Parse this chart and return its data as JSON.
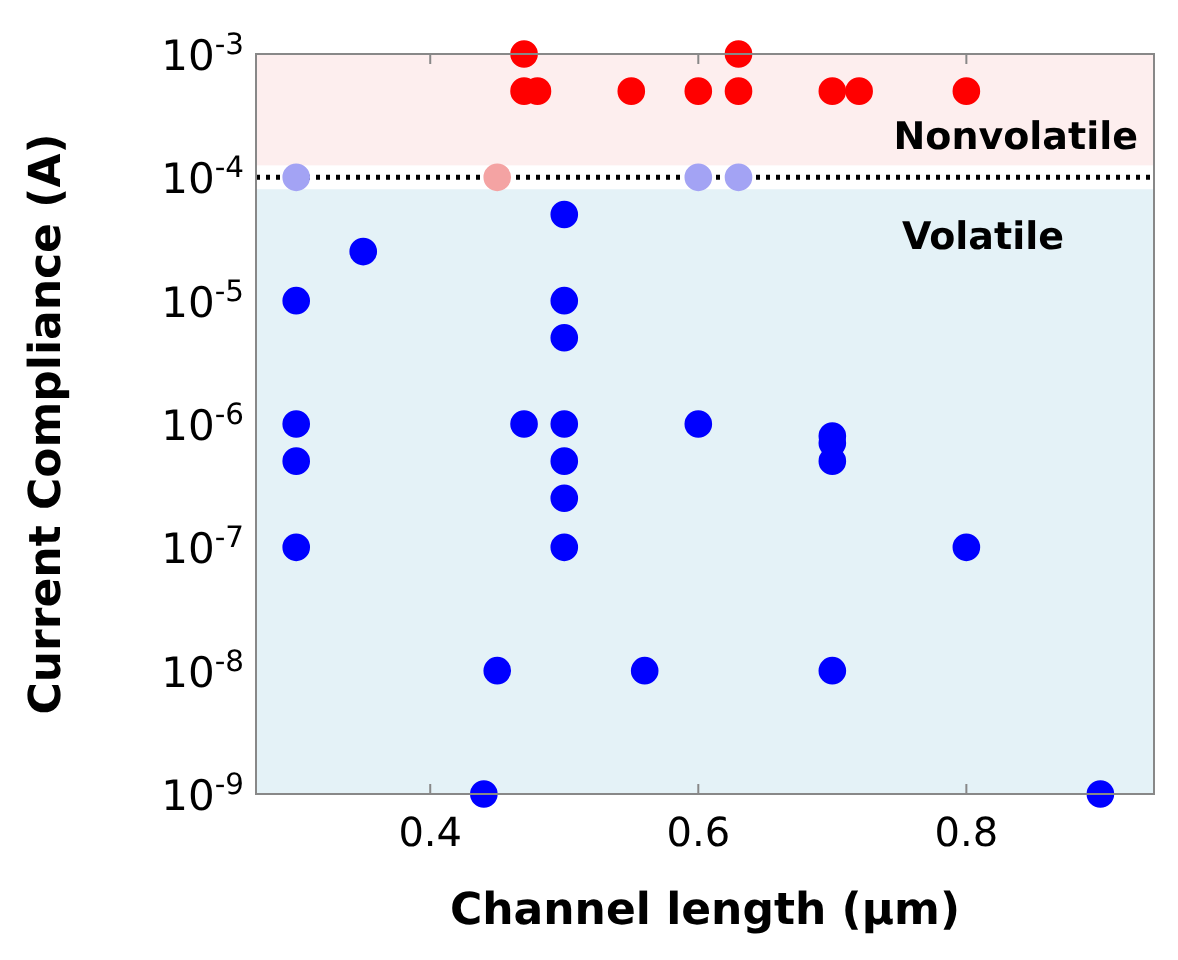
{
  "chart_data": {
    "type": "scatter",
    "xlabel": "Channel length (µm)",
    "ylabel": "Current Compliance (A)",
    "log": "y",
    "xlim": [
      0.27,
      0.94
    ],
    "xticks": [
      0.4,
      0.6,
      0.8
    ],
    "ylim": [
      1e-09,
      0.001
    ],
    "yticks": [
      {
        "value": 1e-09,
        "label": "10$^{-9}$"
      },
      {
        "value": 1e-08,
        "label": "10$^{-8}$"
      },
      {
        "value": 1e-07,
        "label": "10$^{-7}$"
      },
      {
        "value": 1e-06,
        "label": "10$^{-6}$"
      },
      {
        "value": 1e-05,
        "label": "10$^{-5}$"
      },
      {
        "value": 0.0001,
        "label": "10$^{-4}$"
      },
      {
        "value": 0.001,
        "label": "10$^{-3}$"
      }
    ],
    "grid": false,
    "marker": "circle",
    "bands": [
      {
        "axis": "y",
        "from": 0.000125,
        "to": 0.001,
        "label": "Nonvolatile",
        "color": "#fdeeee"
      },
      {
        "axis": "y",
        "from": 1e-09,
        "to": 8e-05,
        "label": "Volatile",
        "color": "#e4f2f7"
      }
    ],
    "ref_lines": [
      {
        "axis": "y",
        "value": 0.0001,
        "color": "#000000",
        "line_style": "dotted"
      }
    ],
    "series": [
      {
        "color": "#ff0000",
        "x": [
          0.47,
          0.63,
          0.47,
          0.48,
          0.55,
          0.6,
          0.63,
          0.7,
          0.72,
          0.8
        ],
        "values": [
          0.001,
          0.001,
          0.0005,
          0.0005,
          0.0005,
          0.0005,
          0.0005,
          0.0005,
          0.0005,
          0.0005
        ]
      },
      {
        "color": "#f4a3a3",
        "x": [
          0.45
        ],
        "values": [
          0.0001
        ]
      },
      {
        "color": "#a3a3f4",
        "x": [
          0.3,
          0.6,
          0.63
        ],
        "values": [
          0.0001,
          0.0001,
          0.0001
        ]
      },
      {
        "color": "#0000ff",
        "x": [
          0.35,
          0.5,
          0.3,
          0.3,
          0.3,
          0.3,
          0.5,
          0.5,
          0.5,
          0.5,
          0.5,
          0.5,
          0.47,
          0.6,
          0.7,
          0.7,
          0.7,
          0.7,
          0.8,
          0.45,
          0.56,
          0.44,
          0.9
        ],
        "values": [
          2.5e-05,
          5e-05,
          1e-05,
          1e-06,
          5e-07,
          1e-07,
          1e-05,
          5e-06,
          1e-06,
          5e-07,
          2.5e-07,
          1e-07,
          1e-06,
          1e-06,
          8e-07,
          7e-07,
          5e-07,
          1e-08,
          1e-07,
          1e-08,
          1e-08,
          1e-09,
          1e-09
        ]
      }
    ]
  }
}
